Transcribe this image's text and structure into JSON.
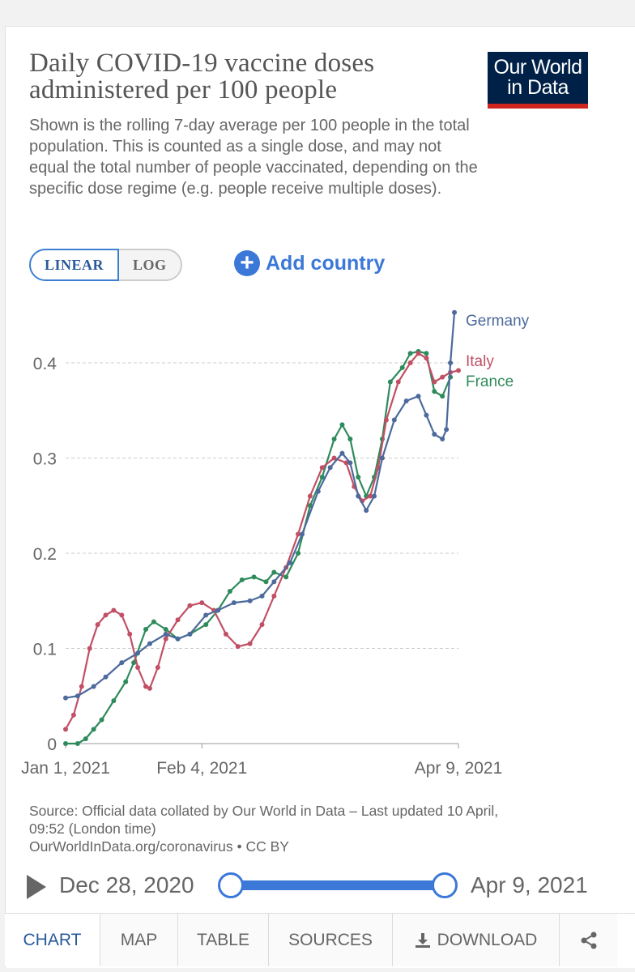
{
  "header": {
    "title": "Daily COVID-19 vaccine doses administered per 100 people",
    "subtitle": "Shown is the rolling 7-day average per 100 people in the total population. This is counted as a single dose, and may not equal the total number of people vaccinated, depending on the specific dose regime (e.g. people receive multiple doses).",
    "logo_line1": "Our World",
    "logo_line2": "in Data"
  },
  "controls": {
    "linear": "LINEAR",
    "log": "LOG",
    "add_country": "Add country"
  },
  "chart_data": {
    "type": "line",
    "title": "Daily COVID-19 vaccine doses administered per 100 people",
    "x_start": "2021-01-01",
    "x_end": "2021-04-09",
    "x_ticks": [
      {
        "day": 0,
        "label": "Jan 1, 2021"
      },
      {
        "day": 34,
        "label": "Feb 4, 2021"
      },
      {
        "day": 98,
        "label": "Apr 9, 2021"
      }
    ],
    "y_ticks": [
      0,
      0.1,
      0.2,
      0.3,
      0.4
    ],
    "ylim": [
      0,
      0.45
    ],
    "grid": true,
    "series": [
      {
        "name": "Germany",
        "color": "#4c6a9c",
        "points": [
          [
            0,
            0.048
          ],
          [
            3,
            0.05
          ],
          [
            7,
            0.06
          ],
          [
            10,
            0.07
          ],
          [
            14,
            0.085
          ],
          [
            18,
            0.095
          ],
          [
            21,
            0.105
          ],
          [
            25,
            0.115
          ],
          [
            28,
            0.11
          ],
          [
            31,
            0.115
          ],
          [
            35,
            0.135
          ],
          [
            38,
            0.14
          ],
          [
            42,
            0.148
          ],
          [
            46,
            0.15
          ],
          [
            49,
            0.155
          ],
          [
            52,
            0.17
          ],
          [
            56,
            0.19
          ],
          [
            59,
            0.22
          ],
          [
            63,
            0.265
          ],
          [
            66,
            0.29
          ],
          [
            69,
            0.305
          ],
          [
            71,
            0.295
          ],
          [
            73,
            0.26
          ],
          [
            75,
            0.245
          ],
          [
            77,
            0.26
          ],
          [
            79,
            0.3
          ],
          [
            82,
            0.34
          ],
          [
            85,
            0.36
          ],
          [
            88,
            0.365
          ],
          [
            90,
            0.345
          ],
          [
            92,
            0.325
          ],
          [
            94,
            0.32
          ],
          [
            95,
            0.33
          ],
          [
            96,
            0.4
          ],
          [
            97,
            0.453
          ]
        ]
      },
      {
        "name": "Italy",
        "color": "#c15065",
        "points": [
          [
            0,
            0.015
          ],
          [
            2,
            0.03
          ],
          [
            4,
            0.06
          ],
          [
            6,
            0.1
          ],
          [
            8,
            0.125
          ],
          [
            10,
            0.135
          ],
          [
            12,
            0.14
          ],
          [
            14,
            0.135
          ],
          [
            16,
            0.115
          ],
          [
            18,
            0.08
          ],
          [
            20,
            0.06
          ],
          [
            21,
            0.058
          ],
          [
            23,
            0.08
          ],
          [
            25,
            0.11
          ],
          [
            28,
            0.13
          ],
          [
            31,
            0.145
          ],
          [
            34,
            0.148
          ],
          [
            37,
            0.14
          ],
          [
            40,
            0.115
          ],
          [
            43,
            0.102
          ],
          [
            46,
            0.105
          ],
          [
            49,
            0.125
          ],
          [
            52,
            0.155
          ],
          [
            55,
            0.185
          ],
          [
            58,
            0.22
          ],
          [
            61,
            0.26
          ],
          [
            64,
            0.29
          ],
          [
            67,
            0.3
          ],
          [
            70,
            0.295
          ],
          [
            72,
            0.27
          ],
          [
            74,
            0.255
          ],
          [
            76,
            0.26
          ],
          [
            78,
            0.29
          ],
          [
            80,
            0.34
          ],
          [
            83,
            0.38
          ],
          [
            86,
            0.4
          ],
          [
            88,
            0.41
          ],
          [
            90,
            0.405
          ],
          [
            92,
            0.38
          ],
          [
            94,
            0.385
          ],
          [
            96,
            0.39
          ],
          [
            98,
            0.392
          ]
        ]
      },
      {
        "name": "France",
        "color": "#2f8a5c",
        "points": [
          [
            0,
            0.0
          ],
          [
            3,
            0.0
          ],
          [
            5,
            0.005
          ],
          [
            7,
            0.015
          ],
          [
            9,
            0.025
          ],
          [
            12,
            0.045
          ],
          [
            15,
            0.065
          ],
          [
            17,
            0.085
          ],
          [
            20,
            0.12
          ],
          [
            22,
            0.128
          ],
          [
            25,
            0.12
          ],
          [
            28,
            0.11
          ],
          [
            31,
            0.115
          ],
          [
            35,
            0.125
          ],
          [
            38,
            0.14
          ],
          [
            41,
            0.16
          ],
          [
            44,
            0.172
          ],
          [
            47,
            0.175
          ],
          [
            50,
            0.17
          ],
          [
            52,
            0.18
          ],
          [
            55,
            0.175
          ],
          [
            58,
            0.2
          ],
          [
            61,
            0.25
          ],
          [
            64,
            0.28
          ],
          [
            67,
            0.32
          ],
          [
            69,
            0.335
          ],
          [
            71,
            0.32
          ],
          [
            73,
            0.28
          ],
          [
            75,
            0.26
          ],
          [
            77,
            0.28
          ],
          [
            79,
            0.32
          ],
          [
            81,
            0.38
          ],
          [
            84,
            0.395
          ],
          [
            86,
            0.41
          ],
          [
            88,
            0.412
          ],
          [
            90,
            0.41
          ],
          [
            92,
            0.37
          ],
          [
            94,
            0.365
          ],
          [
            96,
            0.385
          ]
        ]
      }
    ]
  },
  "footer": {
    "source": "Source: Official data collated by Our World in Data – Last updated 10 April,",
    "time": "09:52 (London time)",
    "url": "OurWorldInData.org/coronavirus • CC BY"
  },
  "timeline": {
    "start": "Dec 28, 2020",
    "end": "Apr 9, 2021"
  },
  "tabs": [
    {
      "label": "CHART"
    },
    {
      "label": "MAP"
    },
    {
      "label": "TABLE"
    },
    {
      "label": "SOURCES"
    },
    {
      "label": "DOWNLOAD"
    }
  ]
}
